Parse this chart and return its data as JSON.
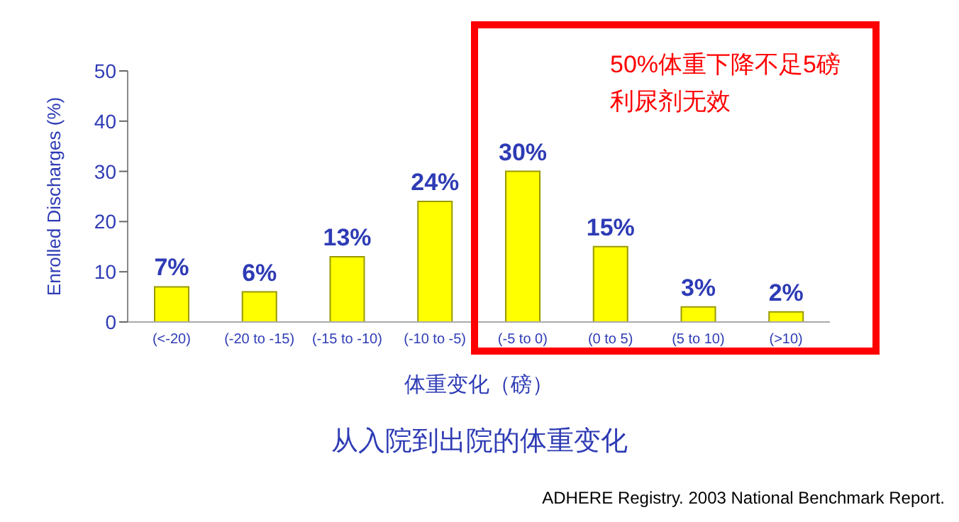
{
  "chart_data": {
    "type": "bar",
    "title": "从入院到出院的体重变化",
    "xlabel": "体重变化（磅）",
    "ylabel": "Enrolled Discharges (%)",
    "categories": [
      "(<-20)",
      "(-20 to -15)",
      "(-15 to -10)",
      "(-10 to -5)",
      "(-5 to 0)",
      "(0 to 5)",
      "(5 to 10)",
      "(>10)"
    ],
    "values": [
      7,
      6,
      13,
      24,
      30,
      15,
      3,
      2
    ],
    "value_labels": [
      "7%",
      "6%",
      "13%",
      "24%",
      "30%",
      "15%",
      "3%",
      "2%"
    ],
    "color": "#ffff00",
    "ylim": [
      0,
      50
    ],
    "yticks": [
      0,
      10,
      20,
      30,
      40,
      50
    ],
    "grid": false,
    "legend": false,
    "annotations": [
      "50%体重下降不足5磅利尿剂无效",
      "ADHERE Registry. 2003 National Benchmark Report."
    ]
  }
}
